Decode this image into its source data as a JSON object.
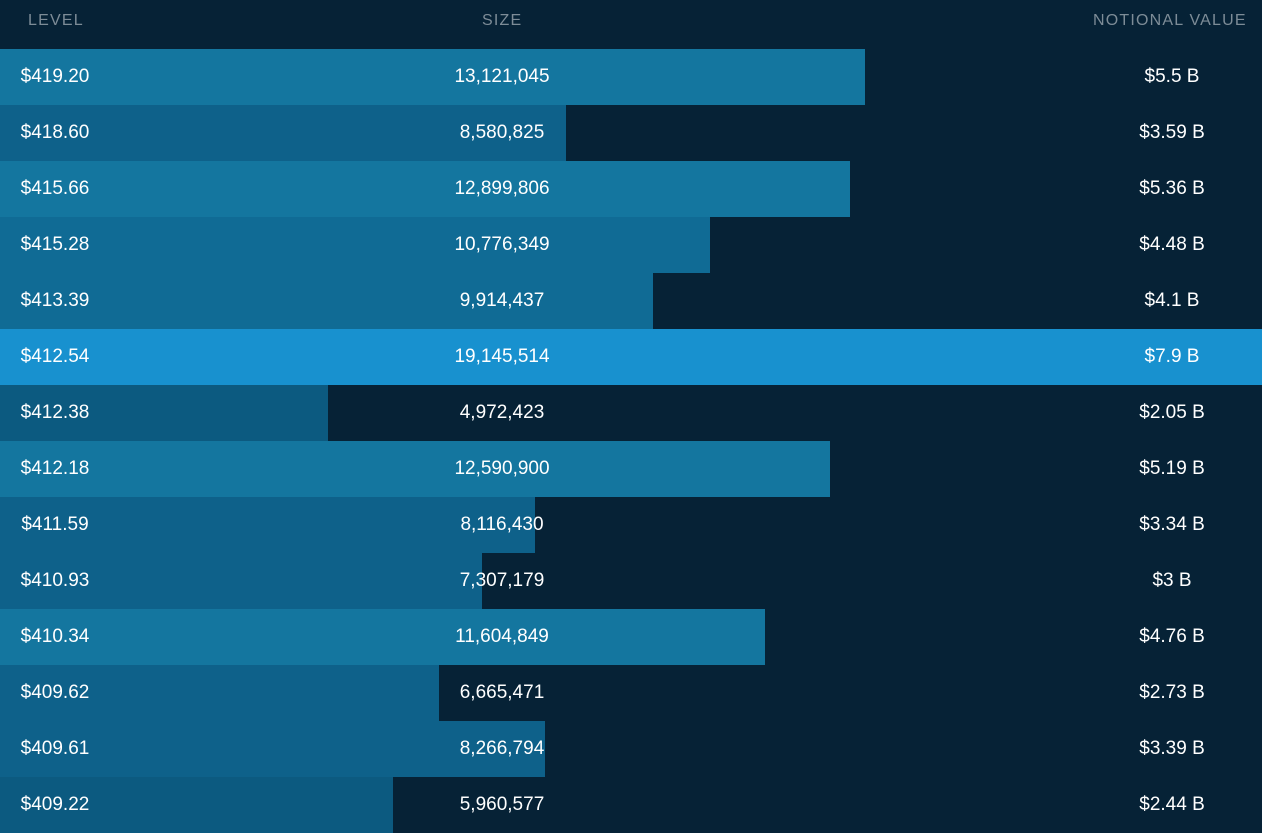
{
  "header": {
    "level": "LEVEL",
    "size": "SIZE",
    "notional_value": "NOTIONAL VALUE"
  },
  "rows": [
    {
      "level": "$419.20",
      "size": "13,121,045",
      "notional_value": "$5.5 B",
      "fill_fraction": 0.6854,
      "color": "#14769f"
    },
    {
      "level": "$418.60",
      "size": "8,580,825",
      "notional_value": "$3.59 B",
      "fill_fraction": 0.4482,
      "color": "#0e618a"
    },
    {
      "level": "$415.66",
      "size": "12,899,806",
      "notional_value": "$5.36 B",
      "fill_fraction": 0.6738,
      "color": "#14769f"
    },
    {
      "level": "$415.28",
      "size": "10,776,349",
      "notional_value": "$4.48 B",
      "fill_fraction": 0.5629,
      "color": "#106b95"
    },
    {
      "level": "$413.39",
      "size": "9,914,437",
      "notional_value": "$4.1 B",
      "fill_fraction": 0.5178,
      "color": "#106b95"
    },
    {
      "level": "$412.54",
      "size": "19,145,514",
      "notional_value": "$7.9 B",
      "fill_fraction": 1.0,
      "color": "#1891cf"
    },
    {
      "level": "$412.38",
      "size": "4,972,423",
      "notional_value": "$2.05 B",
      "fill_fraction": 0.2597,
      "color": "#0c5a80"
    },
    {
      "level": "$412.18",
      "size": "12,590,900",
      "notional_value": "$5.19 B",
      "fill_fraction": 0.6576,
      "color": "#14769f"
    },
    {
      "level": "$411.59",
      "size": "8,116,430",
      "notional_value": "$3.34 B",
      "fill_fraction": 0.4239,
      "color": "#0e618a"
    },
    {
      "level": "$410.93",
      "size": "7,307,179",
      "notional_value": "$3 B",
      "fill_fraction": 0.3817,
      "color": "#0e618a"
    },
    {
      "level": "$410.34",
      "size": "11,604,849",
      "notional_value": "$4.76 B",
      "fill_fraction": 0.6061,
      "color": "#14769f"
    },
    {
      "level": "$409.62",
      "size": "6,665,471",
      "notional_value": "$2.73 B",
      "fill_fraction": 0.3481,
      "color": "#0e618a"
    },
    {
      "level": "$409.61",
      "size": "8,266,794",
      "notional_value": "$3.39 B",
      "fill_fraction": 0.4318,
      "color": "#0e618a"
    },
    {
      "level": "$409.22",
      "size": "5,960,577",
      "notional_value": "$2.44 B",
      "fill_fraction": 0.3113,
      "color": "#0c5a80"
    }
  ]
}
